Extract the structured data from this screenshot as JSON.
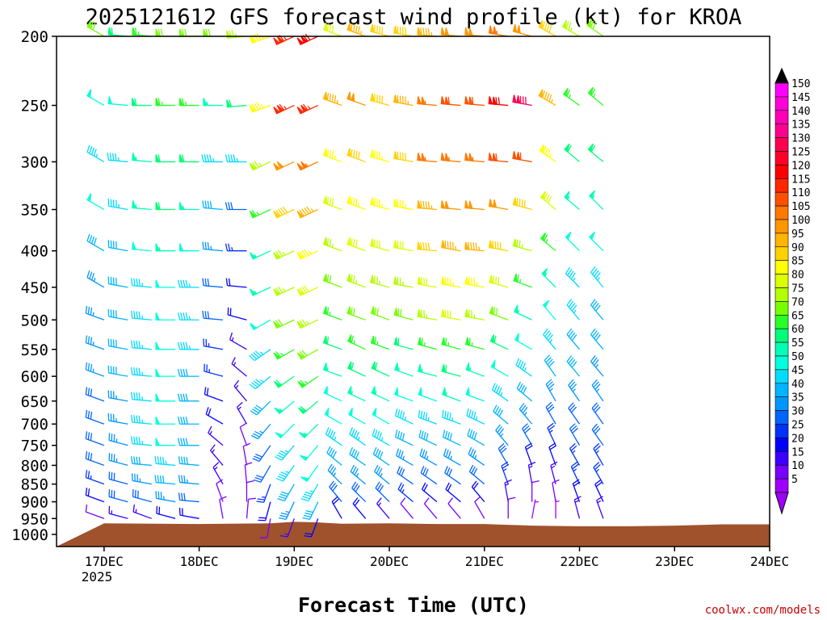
{
  "chart_data": {
    "type": "wind-barb-profile",
    "title": "2025121612 GFS forecast wind profile (kt) for KROA",
    "xlabel": "Forecast Time (UTC)",
    "ylabel": "",
    "watermark": "coolwx.com/models",
    "x_ticks": [
      "17DEC",
      "18DEC",
      "19DEC",
      "20DEC",
      "21DEC",
      "22DEC",
      "23DEC",
      "24DEC"
    ],
    "x_year": "2025",
    "x_range_hours": [
      -12,
      168
    ],
    "y_ticks": [
      "200",
      "250",
      "300",
      "350",
      "400",
      "450",
      "500",
      "550",
      "600",
      "650",
      "700",
      "750",
      "800",
      "850",
      "900",
      "950",
      "1000"
    ],
    "y_range_hpa": [
      200,
      1040
    ],
    "y_scale": "log",
    "colorbar_values": [
      "150",
      "145",
      "140",
      "135",
      "130",
      "125",
      "120",
      "115",
      "110",
      "105",
      "100",
      "95",
      "90",
      "85",
      "80",
      "75",
      "70",
      "65",
      "60",
      "55",
      "50",
      "45",
      "40",
      "35",
      "30",
      "25",
      "20",
      "15",
      "10",
      "5"
    ],
    "colorbar_colors": [
      "#ff00ff",
      "#ff00d8",
      "#ff00b4",
      "#ff0090",
      "#ff0050",
      "#ff0028",
      "#ff0000",
      "#ff2800",
      "#ff5000",
      "#ff7800",
      "#ff9600",
      "#ffb400",
      "#ffd200",
      "#ffff00",
      "#dcff00",
      "#b4ff00",
      "#78ff00",
      "#28ff28",
      "#00ff78",
      "#00ffb4",
      "#00ffdc",
      "#00dcff",
      "#00b4ff",
      "#0096ff",
      "#0064ff",
      "#0032ff",
      "#0000ff",
      "#3c00ff",
      "#7800ff",
      "#a000ff"
    ],
    "terrain_color": "#a0522d",
    "wind_levels_hpa": [
      200,
      250,
      300,
      350,
      400,
      450,
      500,
      550,
      600,
      650,
      700,
      750,
      800,
      850,
      900,
      950
    ],
    "wind_columns": [
      {
        "t": 0,
        "dir": [
          300,
          300,
          300,
          300,
          300,
          300,
          290,
          290,
          290,
          290,
          290,
          290,
          290,
          290,
          290,
          290
        ],
        "spd": [
          70,
          50,
          45,
          50,
          40,
          35,
          35,
          35,
          35,
          30,
          30,
          30,
          30,
          25,
          20,
          10
        ]
      },
      {
        "t": 6,
        "dir": [
          275,
          275,
          275,
          280,
          280,
          280,
          280,
          280,
          280,
          280,
          280,
          285,
          285,
          285,
          285,
          285
        ],
        "spd": [
          60,
          50,
          45,
          45,
          40,
          40,
          40,
          40,
          40,
          35,
          35,
          35,
          35,
          30,
          30,
          15
        ]
      },
      {
        "t": 12,
        "dir": [
          275,
          270,
          275,
          275,
          275,
          275,
          275,
          275,
          275,
          275,
          275,
          275,
          275,
          280,
          285,
          290
        ],
        "spd": [
          65,
          60,
          55,
          55,
          50,
          45,
          45,
          45,
          45,
          45,
          45,
          45,
          40,
          35,
          30,
          15
        ]
      },
      {
        "t": 18,
        "dir": [
          270,
          270,
          270,
          270,
          270,
          270,
          270,
          270,
          270,
          270,
          270,
          270,
          275,
          275,
          280,
          285
        ],
        "spd": [
          70,
          65,
          60,
          60,
          55,
          50,
          50,
          50,
          50,
          50,
          50,
          50,
          45,
          40,
          35,
          20
        ]
      },
      {
        "t": 24,
        "dir": [
          270,
          270,
          270,
          270,
          270,
          270,
          270,
          270,
          270,
          270,
          270,
          270,
          275,
          275,
          275,
          280
        ],
        "spd": [
          70,
          65,
          60,
          55,
          50,
          45,
          45,
          45,
          40,
          40,
          40,
          40,
          40,
          35,
          30,
          20
        ]
      },
      {
        "t": 30,
        "dir": [
          270,
          270,
          270,
          275,
          275,
          275,
          275,
          280,
          285,
          290,
          300,
          310,
          320,
          330,
          340,
          350
        ],
        "spd": [
          70,
          55,
          45,
          40,
          35,
          30,
          30,
          25,
          25,
          20,
          20,
          15,
          15,
          15,
          10,
          10
        ]
      },
      {
        "t": 36,
        "dir": [
          265,
          265,
          270,
          270,
          270,
          275,
          285,
          300,
          310,
          320,
          330,
          340,
          350,
          355,
          0,
          5
        ],
        "spd": [
          75,
          60,
          45,
          30,
          25,
          20,
          20,
          15,
          15,
          15,
          15,
          10,
          10,
          10,
          10,
          10
        ]
      },
      {
        "t": 42,
        "dir": [
          250,
          250,
          245,
          245,
          245,
          245,
          240,
          235,
          230,
          225,
          220,
          215,
          210,
          200,
          195,
          190
        ],
        "spd": [
          85,
          85,
          75,
          65,
          55,
          55,
          50,
          45,
          45,
          40,
          35,
          30,
          30,
          25,
          20,
          10
        ]
      },
      {
        "t": 48,
        "dir": [
          245,
          245,
          245,
          245,
          245,
          245,
          245,
          240,
          235,
          230,
          225,
          220,
          215,
          210,
          205,
          200
        ],
        "spd": [
          115,
          115,
          100,
          90,
          75,
          75,
          70,
          65,
          60,
          55,
          50,
          45,
          45,
          40,
          35,
          15
        ]
      },
      {
        "t": 54,
        "dir": [
          245,
          245,
          245,
          245,
          245,
          245,
          245,
          240,
          235,
          230,
          225,
          220,
          215,
          210,
          205,
          200
        ],
        "spd": [
          120,
          115,
          105,
          95,
          85,
          80,
          75,
          70,
          65,
          60,
          55,
          50,
          50,
          45,
          40,
          20
        ]
      },
      {
        "t": 60,
        "dir": [
          290,
          290,
          290,
          290,
          290,
          290,
          290,
          290,
          290,
          295,
          300,
          305,
          310,
          315,
          320,
          330
        ],
        "spd": [
          80,
          95,
          85,
          80,
          75,
          70,
          65,
          60,
          55,
          50,
          50,
          45,
          40,
          35,
          30,
          20
        ]
      },
      {
        "t": 66,
        "dir": [
          290,
          290,
          290,
          290,
          290,
          290,
          290,
          295,
          295,
          295,
          300,
          305,
          305,
          310,
          315,
          320
        ],
        "spd": [
          95,
          100,
          90,
          85,
          80,
          75,
          70,
          65,
          60,
          55,
          50,
          45,
          40,
          35,
          30,
          20
        ]
      },
      {
        "t": 72,
        "dir": [
          285,
          285,
          285,
          285,
          285,
          285,
          290,
          290,
          295,
          295,
          300,
          300,
          305,
          310,
          315,
          320
        ],
        "spd": [
          90,
          90,
          85,
          85,
          80,
          75,
          70,
          65,
          60,
          55,
          50,
          45,
          40,
          35,
          30,
          15
        ]
      },
      {
        "t": 78,
        "dir": [
          280,
          280,
          280,
          280,
          280,
          280,
          285,
          285,
          290,
          290,
          295,
          295,
          300,
          305,
          310,
          320
        ],
        "spd": [
          90,
          95,
          90,
          85,
          80,
          75,
          70,
          60,
          55,
          50,
          45,
          40,
          35,
          30,
          25,
          10
        ]
      },
      {
        "t": 84,
        "dir": [
          275,
          275,
          275,
          275,
          275,
          280,
          280,
          285,
          285,
          290,
          290,
          295,
          300,
          305,
          310,
          320
        ],
        "spd": [
          95,
          105,
          105,
          95,
          90,
          80,
          75,
          65,
          55,
          50,
          45,
          40,
          35,
          30,
          20,
          10
        ]
      },
      {
        "t": 90,
        "dir": [
          275,
          275,
          275,
          275,
          280,
          280,
          280,
          285,
          285,
          290,
          290,
          295,
          300,
          305,
          310,
          320
        ],
        "spd": [
          100,
          110,
          105,
          100,
          95,
          85,
          80,
          65,
          60,
          55,
          45,
          40,
          35,
          30,
          20,
          10
        ]
      },
      {
        "t": 96,
        "dir": [
          275,
          275,
          275,
          275,
          275,
          280,
          280,
          285,
          290,
          290,
          295,
          300,
          305,
          310,
          320,
          330
        ],
        "spd": [
          100,
          110,
          105,
          100,
          95,
          85,
          75,
          65,
          55,
          50,
          45,
          40,
          35,
          30,
          20,
          10
        ]
      },
      {
        "t": 102,
        "dir": [
          280,
          275,
          275,
          280,
          280,
          285,
          290,
          295,
          300,
          305,
          310,
          320,
          330,
          340,
          350,
          0
        ],
        "spd": [
          105,
          120,
          110,
          100,
          90,
          80,
          70,
          60,
          50,
          45,
          40,
          35,
          30,
          25,
          15,
          10
        ]
      },
      {
        "t": 108,
        "dir": [
          285,
          280,
          280,
          285,
          285,
          290,
          295,
          300,
          305,
          310,
          320,
          330,
          340,
          350,
          0,
          10
        ],
        "spd": [
          100,
          130,
          110,
          90,
          75,
          65,
          55,
          50,
          45,
          40,
          35,
          30,
          20,
          15,
          10,
          5
        ]
      },
      {
        "t": 114,
        "dir": [
          300,
          300,
          305,
          310,
          310,
          315,
          320,
          320,
          325,
          330,
          330,
          335,
          340,
          345,
          350,
          0
        ],
        "spd": [
          90,
          95,
          85,
          80,
          65,
          55,
          50,
          45,
          40,
          35,
          30,
          25,
          20,
          15,
          10,
          5
        ]
      },
      {
        "t": 120,
        "dir": [
          300,
          305,
          310,
          310,
          315,
          315,
          320,
          320,
          320,
          325,
          325,
          330,
          330,
          335,
          340,
          345
        ],
        "spd": [
          75,
          65,
          60,
          55,
          50,
          45,
          45,
          40,
          40,
          35,
          30,
          30,
          25,
          25,
          20,
          15
        ]
      },
      {
        "t": 126,
        "dir": [
          305,
          310,
          310,
          315,
          315,
          320,
          320,
          320,
          320,
          325,
          325,
          325,
          330,
          330,
          335,
          340
        ],
        "spd": [
          70,
          65,
          60,
          55,
          50,
          45,
          40,
          40,
          35,
          35,
          30,
          30,
          25,
          25,
          20,
          15
        ]
      }
    ]
  }
}
